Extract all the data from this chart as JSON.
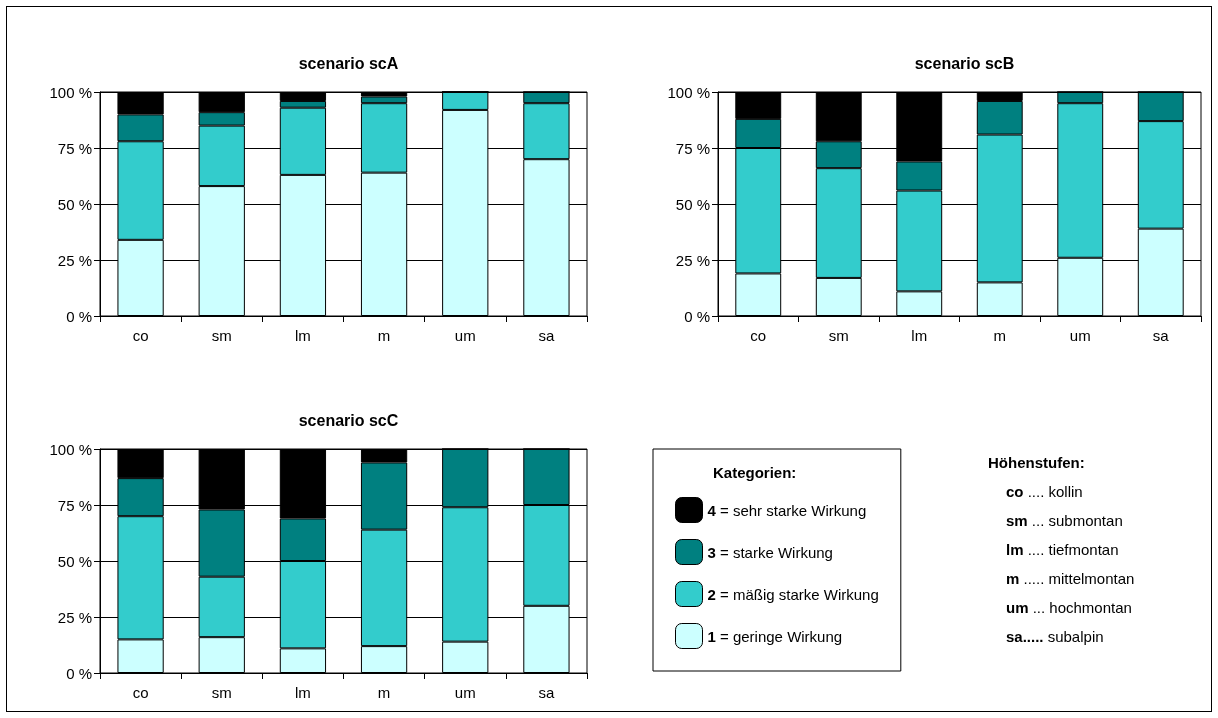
{
  "chart_data": [
    {
      "type": "bar",
      "title": "scenario scA",
      "categories": [
        "co",
        "sm",
        "lm",
        "m",
        "um",
        "sa"
      ],
      "stacked": true,
      "ylim": [
        0,
        100
      ],
      "yticks": [
        {
          "value": 0,
          "label": "0 %"
        },
        {
          "value": 25,
          "label": "25 %"
        },
        {
          "value": 50,
          "label": "50 %"
        },
        {
          "value": 75,
          "label": "75 %"
        },
        {
          "value": 100,
          "label": "100 %"
        }
      ],
      "grid": "y",
      "legend": false,
      "series": [
        {
          "color": "#ccffff",
          "values": [
            34,
            58,
            63,
            64,
            92,
            70
          ]
        },
        {
          "color": "#33cccc",
          "values": [
            44,
            27,
            30,
            31,
            8,
            25
          ]
        },
        {
          "color": "#008080",
          "values": [
            12,
            6,
            3,
            3,
            0,
            5
          ]
        },
        {
          "color": "#000000",
          "values": [
            10,
            9,
            4,
            2,
            0,
            0
          ]
        }
      ]
    },
    {
      "type": "bar",
      "title": "scenario scB",
      "categories": [
        "co",
        "sm",
        "lm",
        "m",
        "um",
        "sa"
      ],
      "stacked": true,
      "ylim": [
        0,
        100
      ],
      "yticks": [
        {
          "value": 0,
          "label": "0 %"
        },
        {
          "value": 25,
          "label": "25 %"
        },
        {
          "value": 50,
          "label": "50 %"
        },
        {
          "value": 75,
          "label": "75 %"
        },
        {
          "value": 100,
          "label": "100 %"
        }
      ],
      "grid": "y",
      "legend": false,
      "series": [
        {
          "color": "#ccffff",
          "values": [
            19,
            17,
            11,
            15,
            26,
            39
          ]
        },
        {
          "color": "#33cccc",
          "values": [
            56,
            49,
            45,
            66,
            69,
            48
          ]
        },
        {
          "color": "#008080",
          "values": [
            13,
            12,
            13,
            15,
            5,
            13
          ]
        },
        {
          "color": "#000000",
          "values": [
            12,
            22,
            31,
            4,
            0,
            0
          ]
        }
      ]
    },
    {
      "type": "bar",
      "title": "scenario scC",
      "categories": [
        "co",
        "sm",
        "lm",
        "m",
        "um",
        "sa"
      ],
      "stacked": true,
      "ylim": [
        0,
        100
      ],
      "yticks": [
        {
          "value": 0,
          "label": "0 %"
        },
        {
          "value": 25,
          "label": "25 %"
        },
        {
          "value": 50,
          "label": "50 %"
        },
        {
          "value": 75,
          "label": "75 %"
        },
        {
          "value": 100,
          "label": "100 %"
        }
      ],
      "grid": "y",
      "legend": "right",
      "legend_title": "Kategorien:",
      "annotations": [
        "Höhenstufen:",
        "co .... kollin",
        "sm ... submontan",
        "lm .... tiefmontan",
        "m ..... mittelmontan",
        "um ... hochmontan",
        "sa..... subalpin"
      ],
      "series": [
        {
          "name": "1 = geringe Wirkung",
          "color": "#ccffff",
          "values": [
            15,
            16,
            11,
            12,
            14,
            30
          ]
        },
        {
          "name": "2 = mäßig starke Wirkung",
          "color": "#33cccc",
          "values": [
            55,
            27,
            39,
            52,
            60,
            45
          ]
        },
        {
          "name": "3 = starke Wirkung",
          "color": "#008080",
          "values": [
            17,
            30,
            19,
            30,
            26,
            25
          ]
        },
        {
          "name": "4 = sehr starke Wirkung",
          "color": "#000000",
          "values": [
            13,
            27,
            31,
            6,
            0,
            0
          ]
        }
      ]
    }
  ]
}
